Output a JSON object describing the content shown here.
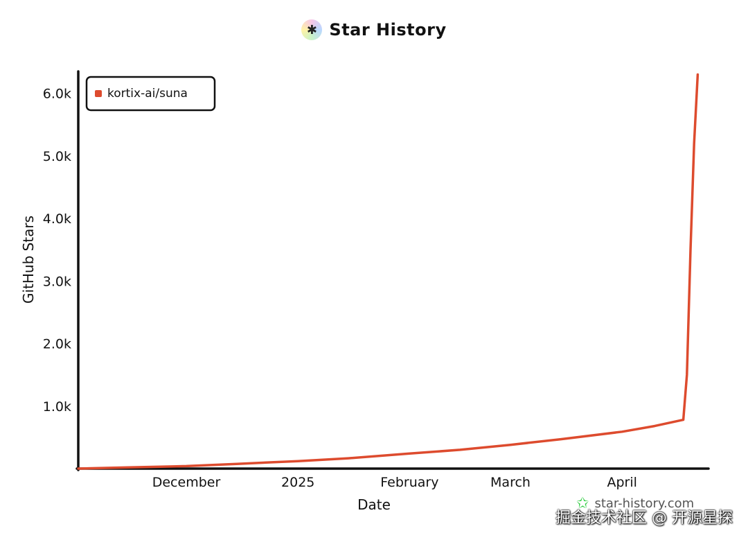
{
  "title": "Star History",
  "logo_icon": "star-history-logo",
  "site_label": "star-history.com",
  "watermark": "掘金技术社区 @ 开源星探",
  "colors": {
    "series": "#dd4b2e",
    "axis": "#111111",
    "site_icon": "#2ecc40"
  },
  "chart_data": {
    "type": "line",
    "title": "Star History",
    "xlabel": "Date",
    "ylabel": "GitHub Stars",
    "x_range": [
      "2024-11-01",
      "2025-04-25"
    ],
    "ylim": [
      0,
      6350
    ],
    "x_ticks": [
      {
        "label": "December",
        "date": "2024-12-01"
      },
      {
        "label": "2025",
        "date": "2025-01-01"
      },
      {
        "label": "February",
        "date": "2025-02-01"
      },
      {
        "label": "March",
        "date": "2025-03-01"
      },
      {
        "label": "April",
        "date": "2025-04-01"
      }
    ],
    "y_ticks": [
      {
        "label": "1.0k",
        "value": 1000
      },
      {
        "label": "2.0k",
        "value": 2000
      },
      {
        "label": "3.0k",
        "value": 3000
      },
      {
        "label": "4.0k",
        "value": 4000
      },
      {
        "label": "5.0k",
        "value": 5000
      },
      {
        "label": "6.0k",
        "value": 6000
      }
    ],
    "legend": {
      "position": "top-left",
      "entries": [
        "kortix-ai/suna"
      ]
    },
    "grid": false,
    "series": [
      {
        "name": "kortix-ai/suna",
        "points": [
          [
            "2024-11-01",
            0
          ],
          [
            "2024-11-15",
            20
          ],
          [
            "2024-12-01",
            40
          ],
          [
            "2024-12-15",
            75
          ],
          [
            "2025-01-01",
            120
          ],
          [
            "2025-01-15",
            165
          ],
          [
            "2025-02-01",
            240
          ],
          [
            "2025-02-15",
            300
          ],
          [
            "2025-03-01",
            380
          ],
          [
            "2025-03-15",
            470
          ],
          [
            "2025-04-01",
            590
          ],
          [
            "2025-04-10",
            680
          ],
          [
            "2025-04-18",
            780
          ],
          [
            "2025-04-19",
            1500
          ],
          [
            "2025-04-20",
            3500
          ],
          [
            "2025-04-21",
            5200
          ],
          [
            "2025-04-22",
            6300
          ]
        ]
      }
    ]
  }
}
